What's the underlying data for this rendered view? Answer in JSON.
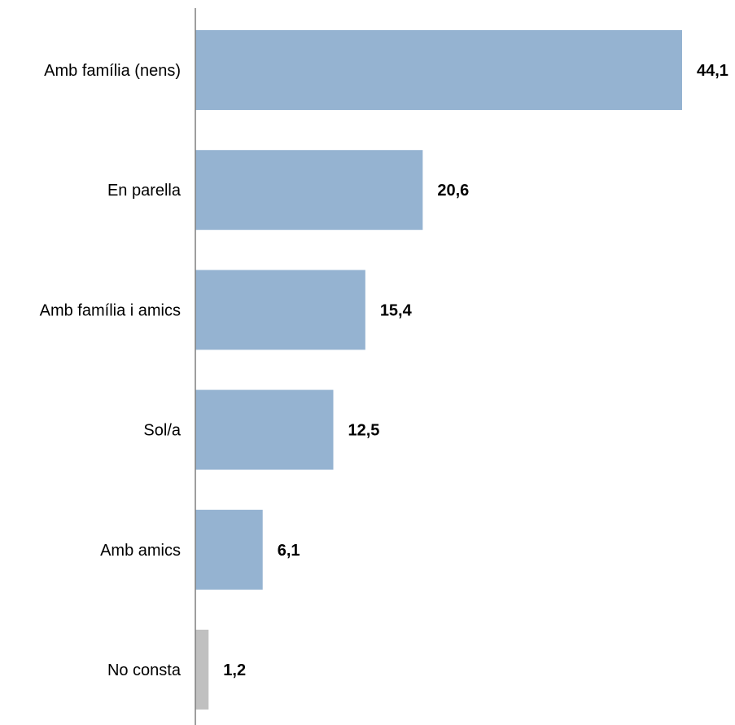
{
  "chart_data": {
    "type": "bar",
    "orientation": "horizontal",
    "categories": [
      "Amb família (nens)",
      "En parella",
      "Amb família i amics",
      "Sol/a",
      "Amb amics",
      "No consta"
    ],
    "values": [
      44.1,
      20.6,
      15.4,
      12.5,
      6.1,
      1.2
    ],
    "value_labels": [
      "44,1",
      "20,6",
      "15,4",
      "12,5",
      "6,1",
      "1,2"
    ],
    "bar_colors": [
      "#95b3d1",
      "#95b3d1",
      "#95b3d1",
      "#95b3d1",
      "#95b3d1",
      "#c0c0c0"
    ],
    "axis_color": "#7f7f7f",
    "title": "",
    "xlabel": "",
    "ylabel": "",
    "xlim": [
      0,
      44.1
    ],
    "grid": false,
    "legend": "none"
  }
}
